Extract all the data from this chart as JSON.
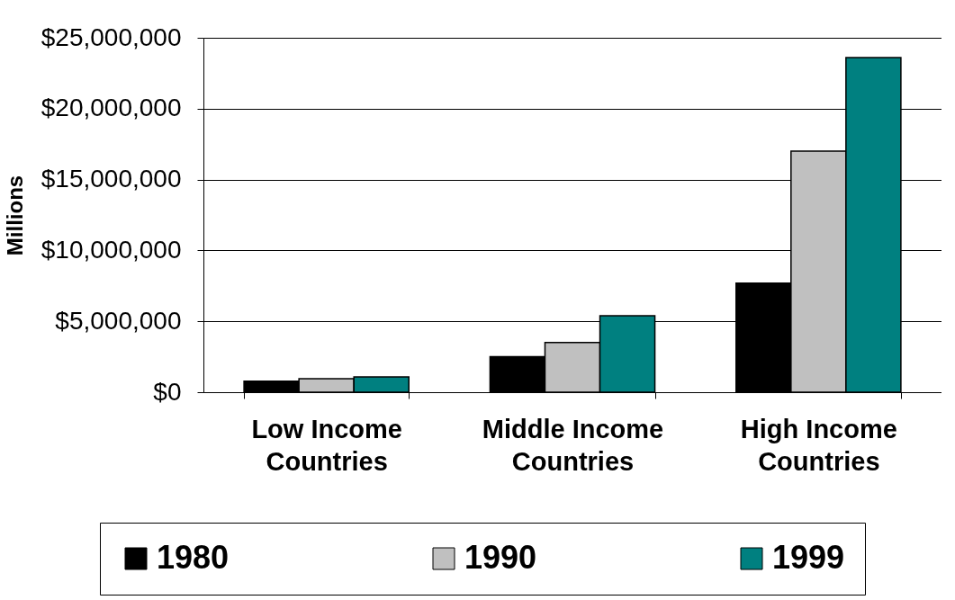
{
  "chart_data": {
    "type": "bar",
    "ylabel": "Millions",
    "categories": [
      "Low Income Countries",
      "Middle Income Countries",
      "High Income Countries"
    ],
    "series": [
      {
        "name": "1980",
        "color": "#000000",
        "values": [
          780000,
          2500000,
          7700000
        ]
      },
      {
        "name": "1990",
        "color": "#c0c0c0",
        "values": [
          950000,
          3500000,
          17000000
        ]
      },
      {
        "name": "1999",
        "color": "#008080",
        "values": [
          1080000,
          5400000,
          23600000
        ]
      }
    ],
    "ylim": [
      0,
      25000000
    ],
    "yticks": [
      {
        "value": 0,
        "label": "$0"
      },
      {
        "value": 5000000,
        "label": "$5,000,000"
      },
      {
        "value": 10000000,
        "label": "$10,000,000"
      },
      {
        "value": 15000000,
        "label": "$15,000,000"
      },
      {
        "value": 20000000,
        "label": "$20,000,000"
      },
      {
        "value": 25000000,
        "label": "$25,000,000"
      }
    ],
    "grid": "y",
    "legend": "bottom"
  }
}
